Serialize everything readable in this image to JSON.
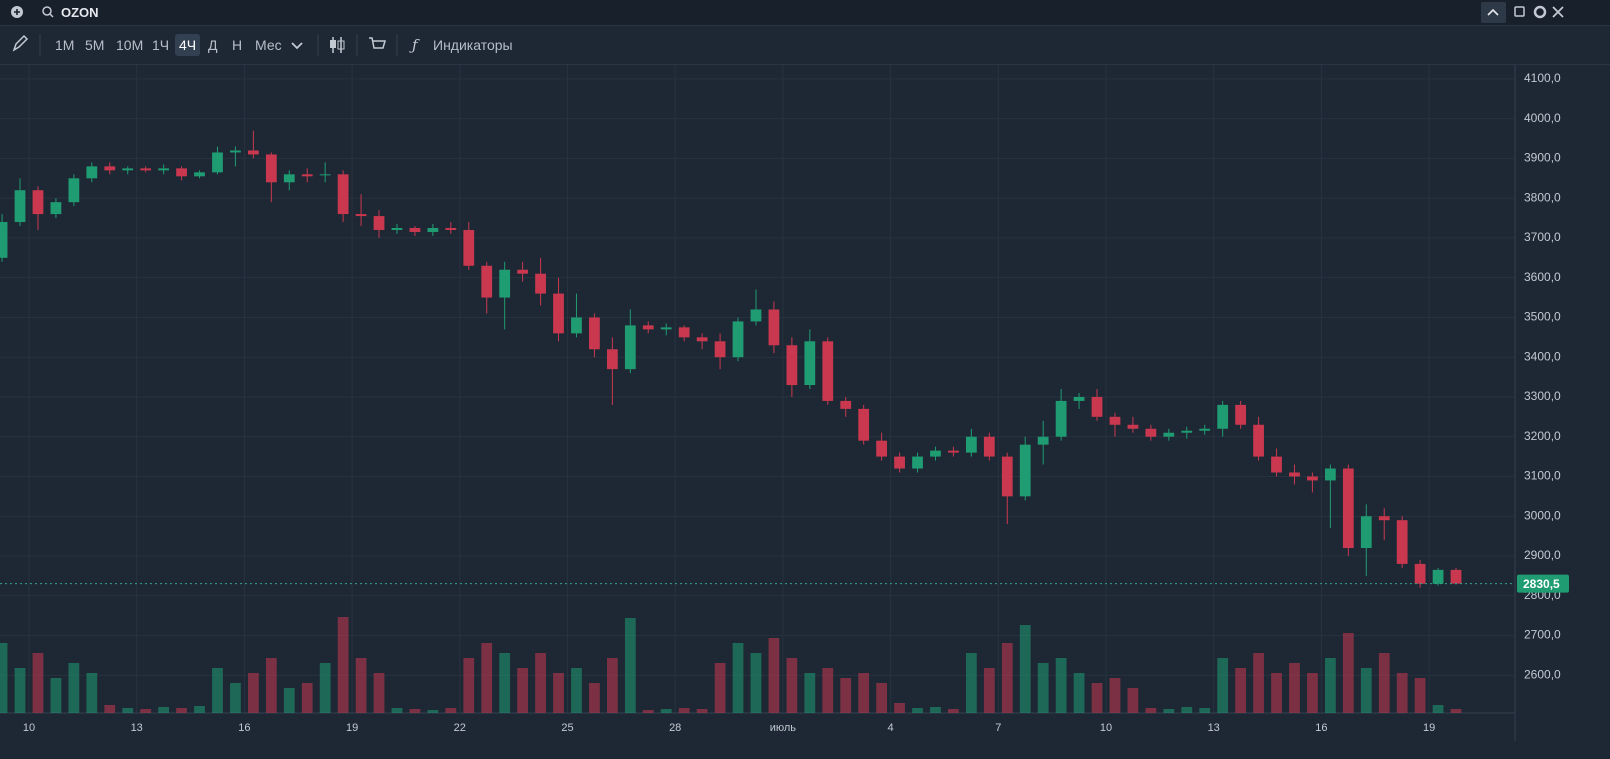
{
  "toolbar": {
    "search": "OZON",
    "intervals": [
      "1М",
      "5М",
      "10М",
      "1Ч",
      "4Ч",
      "Д",
      "Н",
      "Мес"
    ],
    "active_interval": 4,
    "indicators": "Индикаторы"
  },
  "chart_data": {
    "type": "candlestick",
    "categories": [
      null,
      null,
      "10",
      null,
      null,
      null,
      null,
      null,
      "13",
      null,
      null,
      null,
      null,
      null,
      "16",
      null,
      null,
      null,
      null,
      null,
      "19",
      null,
      null,
      null,
      null,
      null,
      "22",
      null,
      null,
      null,
      null,
      null,
      "25",
      null,
      null,
      null,
      null,
      null,
      "28",
      null,
      null,
      null,
      null,
      null,
      "июль",
      null,
      null,
      null,
      null,
      null,
      "4",
      null,
      null,
      null,
      null,
      null,
      "7",
      null,
      null,
      null,
      null,
      null,
      "10",
      null,
      null,
      null,
      null,
      null,
      "13",
      null,
      null,
      null,
      null,
      null,
      "16",
      null,
      null,
      null,
      null,
      null,
      "19",
      null
    ],
    "open": [
      3650,
      3740,
      3820,
      3760,
      3790,
      3850,
      3880,
      3870,
      3875,
      3870,
      3875,
      3855,
      3865,
      3915,
      3920,
      3910,
      3840,
      3860,
      3860,
      3860,
      3760,
      3755,
      3720,
      3725,
      3715,
      3725,
      3720,
      3630,
      3550,
      3620,
      3610,
      3560,
      3460,
      3500,
      3420,
      3370,
      3480,
      3470,
      3475,
      3450,
      3440,
      3400,
      3490,
      3520,
      3430,
      3330,
      3440,
      3290,
      3270,
      3190,
      3150,
      3120,
      3150,
      3165,
      3160,
      3200,
      3150,
      3050,
      3180,
      3200,
      3290,
      3300,
      3250,
      3230,
      3220,
      3200,
      3210,
      3215,
      3220,
      3280,
      3230,
      3150,
      3110,
      3100,
      3090,
      3120,
      2920,
      3000,
      2990,
      2880,
      2830,
      2865
    ],
    "high": [
      3760,
      3850,
      3830,
      3800,
      3860,
      3890,
      3890,
      3880,
      3880,
      3885,
      3880,
      3870,
      3930,
      3930,
      3970,
      3915,
      3870,
      3875,
      3890,
      3870,
      3810,
      3770,
      3735,
      3730,
      3735,
      3740,
      3740,
      3640,
      3640,
      3640,
      3650,
      3600,
      3560,
      3510,
      3450,
      3520,
      3490,
      3485,
      3480,
      3460,
      3460,
      3500,
      3570,
      3540,
      3450,
      3470,
      3450,
      3300,
      3280,
      3210,
      3160,
      3160,
      3175,
      3175,
      3220,
      3210,
      3160,
      3200,
      3240,
      3320,
      3310,
      3320,
      3260,
      3250,
      3230,
      3220,
      3225,
      3230,
      3290,
      3290,
      3250,
      3170,
      3130,
      3110,
      3130,
      3130,
      3030,
      3020,
      3000,
      2890,
      2870,
      2870
    ],
    "low": [
      3640,
      3730,
      3720,
      3750,
      3780,
      3840,
      3860,
      3860,
      3865,
      3860,
      3845,
      3850,
      3860,
      3880,
      3900,
      3790,
      3820,
      3840,
      3840,
      3740,
      3730,
      3700,
      3710,
      3705,
      3705,
      3710,
      3620,
      3510,
      3470,
      3590,
      3530,
      3440,
      3450,
      3400,
      3280,
      3360,
      3460,
      3455,
      3440,
      3420,
      3370,
      3390,
      3480,
      3410,
      3300,
      3320,
      3280,
      3250,
      3180,
      3140,
      3110,
      3110,
      3140,
      3150,
      3150,
      3140,
      2980,
      3040,
      3130,
      3190,
      3270,
      3240,
      3200,
      3210,
      3190,
      3190,
      3195,
      3205,
      3200,
      3220,
      3140,
      3100,
      3080,
      3060,
      2970,
      2900,
      2850,
      2940,
      2870,
      2820,
      2825,
      2828
    ],
    "close": [
      3740,
      3820,
      3760,
      3790,
      3850,
      3880,
      3870,
      3875,
      3870,
      3875,
      3855,
      3865,
      3915,
      3920,
      3910,
      3840,
      3860,
      3855,
      3860,
      3760,
      3755,
      3720,
      3725,
      3715,
      3725,
      3720,
      3630,
      3550,
      3620,
      3610,
      3560,
      3460,
      3500,
      3420,
      3370,
      3480,
      3470,
      3475,
      3450,
      3440,
      3400,
      3490,
      3520,
      3430,
      3330,
      3440,
      3290,
      3270,
      3190,
      3150,
      3120,
      3150,
      3165,
      3160,
      3200,
      3150,
      3050,
      3180,
      3200,
      3290,
      3300,
      3250,
      3230,
      3220,
      3200,
      3210,
      3215,
      3220,
      3280,
      3230,
      3150,
      3110,
      3100,
      3090,
      3120,
      2920,
      3000,
      2990,
      2880,
      2830,
      2865,
      2830.5
    ],
    "volume": [
      70,
      45,
      60,
      35,
      50,
      40,
      8,
      5,
      4,
      6,
      5,
      7,
      45,
      30,
      40,
      55,
      25,
      30,
      50,
      96,
      55,
      40,
      5,
      4,
      3,
      5,
      55,
      70,
      60,
      45,
      60,
      40,
      45,
      30,
      55,
      95,
      3,
      4,
      5,
      4,
      50,
      70,
      60,
      75,
      55,
      40,
      45,
      35,
      40,
      30,
      10,
      5,
      6,
      4,
      60,
      45,
      70,
      88,
      50,
      55,
      40,
      30,
      35,
      25,
      5,
      4,
      6,
      5,
      55,
      45,
      60,
      40,
      50,
      40,
      55,
      80,
      45,
      60,
      40,
      35,
      8,
      4
    ],
    "up_color": "#1f9c72",
    "down_color": "#c9384e",
    "ylim": [
      2505,
      4135
    ],
    "yticks": [
      {
        "value": 2600,
        "label": "2600,0"
      },
      {
        "value": 2700,
        "label": "2700,0"
      },
      {
        "value": 2800,
        "label": "2800,0"
      },
      {
        "value": 2900,
        "label": "2900,0"
      },
      {
        "value": 3000,
        "label": "3000,0"
      },
      {
        "value": 3100,
        "label": "3100,0"
      },
      {
        "value": 3200,
        "label": "3200,0"
      },
      {
        "value": 3300,
        "label": "3300,0"
      },
      {
        "value": 3400,
        "label": "3400,0"
      },
      {
        "value": 3500,
        "label": "3500,0"
      },
      {
        "value": 3600,
        "label": "3600,0"
      },
      {
        "value": 3700,
        "label": "3700,0"
      },
      {
        "value": 3800,
        "label": "3800,0"
      },
      {
        "value": 3900,
        "label": "3900,0"
      },
      {
        "value": 4000,
        "label": "4000,0"
      },
      {
        "value": 4100,
        "label": "4100,0"
      }
    ],
    "volume_lim": [
      0,
      100
    ],
    "last_price": {
      "value": 2830.5,
      "label": "2830,5"
    },
    "grid": true
  }
}
